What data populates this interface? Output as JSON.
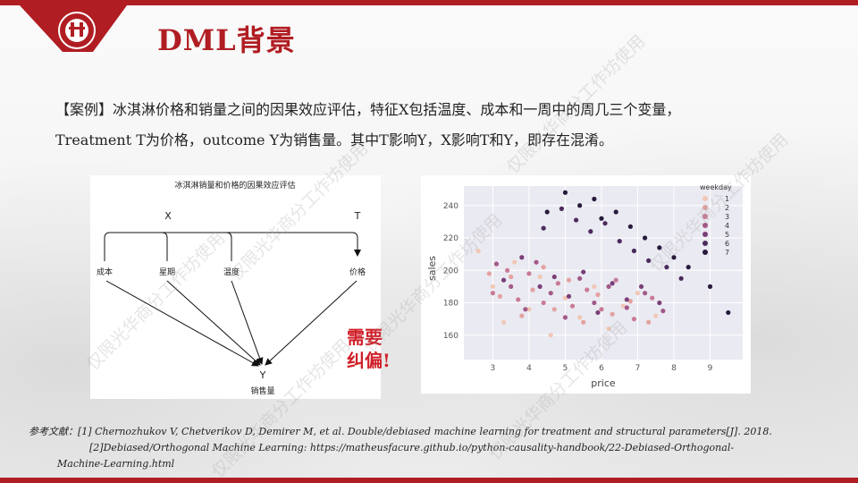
{
  "title": "DML背景",
  "paragraph": {
    "line1": "【案例】冰淇淋价格和销量之间的因果效应评估，特征X包括温度、成本和一周中的周几三个变量，",
    "line2": "Treatment T为价格，outcome Y为销售量。其中T影响Y，X影响T和Y，即存在混淆。"
  },
  "diagram": {
    "title": "冰淇淋销量和价格的因果效应评估",
    "x_label": "X",
    "t_label": "T",
    "nodes": [
      "成本",
      "星期",
      "温度",
      "价格"
    ],
    "y_label": "Y",
    "y_caption": "销售量"
  },
  "callout": {
    "line1": "需要",
    "line2": "纠偏!"
  },
  "references": {
    "prefix": "参考文献：",
    "ref1": "[1] Chernozhukov V, Chetverikov D, Demirer M, et al. Double/debiased machine learning for treatment and structural parameters[J]. 2018.",
    "ref2": "[2]Debiased/Orthogonal Machine Learning: https://matheusfacure.github.io/python-causality-handbook/22-Debiased-Orthogonal-",
    "ref3": "Machine-Learning.html"
  },
  "watermark_text": "仅限光华商分工作坊使用",
  "colors": {
    "accent": "#b01d22",
    "callout": "#d0202a",
    "plot_bg": "#eaeaf2"
  },
  "logo_icon": "peking-university-seal-icon",
  "chart_data": {
    "type": "scatter",
    "xlabel": "price",
    "ylabel": "sales",
    "xlim": [
      2.2,
      9.9
    ],
    "ylim": [
      145,
      252
    ],
    "xticks": [
      3,
      4,
      5,
      6,
      7,
      8,
      9
    ],
    "yticks": [
      160,
      180,
      200,
      220,
      240
    ],
    "grid": true,
    "legend": {
      "title": "weekday",
      "placement": "top-right",
      "entries": [
        "1",
        "2",
        "3",
        "4",
        "5",
        "6",
        "7"
      ]
    },
    "palette": [
      "#f1c7b5",
      "#e3a1a0",
      "#c97a95",
      "#a35988",
      "#7a3f78",
      "#4b2a5d",
      "#271a3c"
    ],
    "series": [
      {
        "name": "1",
        "x": [
          2.6,
          3.0,
          3.3,
          3.6,
          4.0,
          4.3,
          4.6,
          5.0,
          5.4,
          5.8,
          6.2,
          6.6,
          7.0,
          7.5
        ],
        "y": [
          212,
          190,
          168,
          205,
          176,
          196,
          160,
          183,
          171,
          190,
          164,
          178,
          186,
          172
        ]
      },
      {
        "name": "2",
        "x": [
          2.9,
          3.2,
          3.5,
          3.8,
          4.1,
          4.4,
          4.7,
          5.1,
          5.5,
          5.9,
          6.3,
          6.8,
          7.3
        ],
        "y": [
          198,
          184,
          196,
          172,
          188,
          202,
          176,
          194,
          168,
          185,
          173,
          181,
          168
        ]
      },
      {
        "name": "3",
        "x": [
          3.0,
          3.4,
          3.7,
          4.0,
          4.4,
          4.8,
          5.2,
          5.6,
          6.0,
          6.4,
          6.9,
          7.4
        ],
        "y": [
          186,
          200,
          182,
          198,
          180,
          192,
          178,
          188,
          176,
          194,
          170,
          183
        ]
      },
      {
        "name": "4",
        "x": [
          3.1,
          3.5,
          3.9,
          4.2,
          4.6,
          5.0,
          5.4,
          5.8,
          6.2,
          6.7,
          7.2,
          7.7
        ],
        "y": [
          204,
          190,
          176,
          205,
          186,
          171,
          195,
          180,
          190,
          177,
          186,
          175
        ]
      },
      {
        "name": "5",
        "x": [
          3.3,
          3.8,
          4.3,
          4.7,
          5.1,
          5.5,
          5.9,
          6.3,
          6.7,
          7.1,
          7.6
        ],
        "y": [
          194,
          208,
          190,
          196,
          184,
          199,
          174,
          192,
          182,
          190,
          180
        ]
      },
      {
        "name": "6",
        "x": [
          4.4,
          4.9,
          5.3,
          5.7,
          6.1,
          6.5,
          6.9,
          7.3,
          7.8,
          8.2
        ],
        "y": [
          226,
          238,
          231,
          224,
          229,
          218,
          212,
          206,
          202,
          195
        ]
      },
      {
        "name": "7",
        "x": [
          4.5,
          5.0,
          5.4,
          5.8,
          6.0,
          6.4,
          6.8,
          7.2,
          7.6,
          8.0,
          8.4,
          9.0,
          9.5
        ],
        "y": [
          236,
          248,
          240,
          244,
          232,
          236,
          227,
          220,
          214,
          208,
          202,
          190,
          174
        ]
      }
    ]
  }
}
